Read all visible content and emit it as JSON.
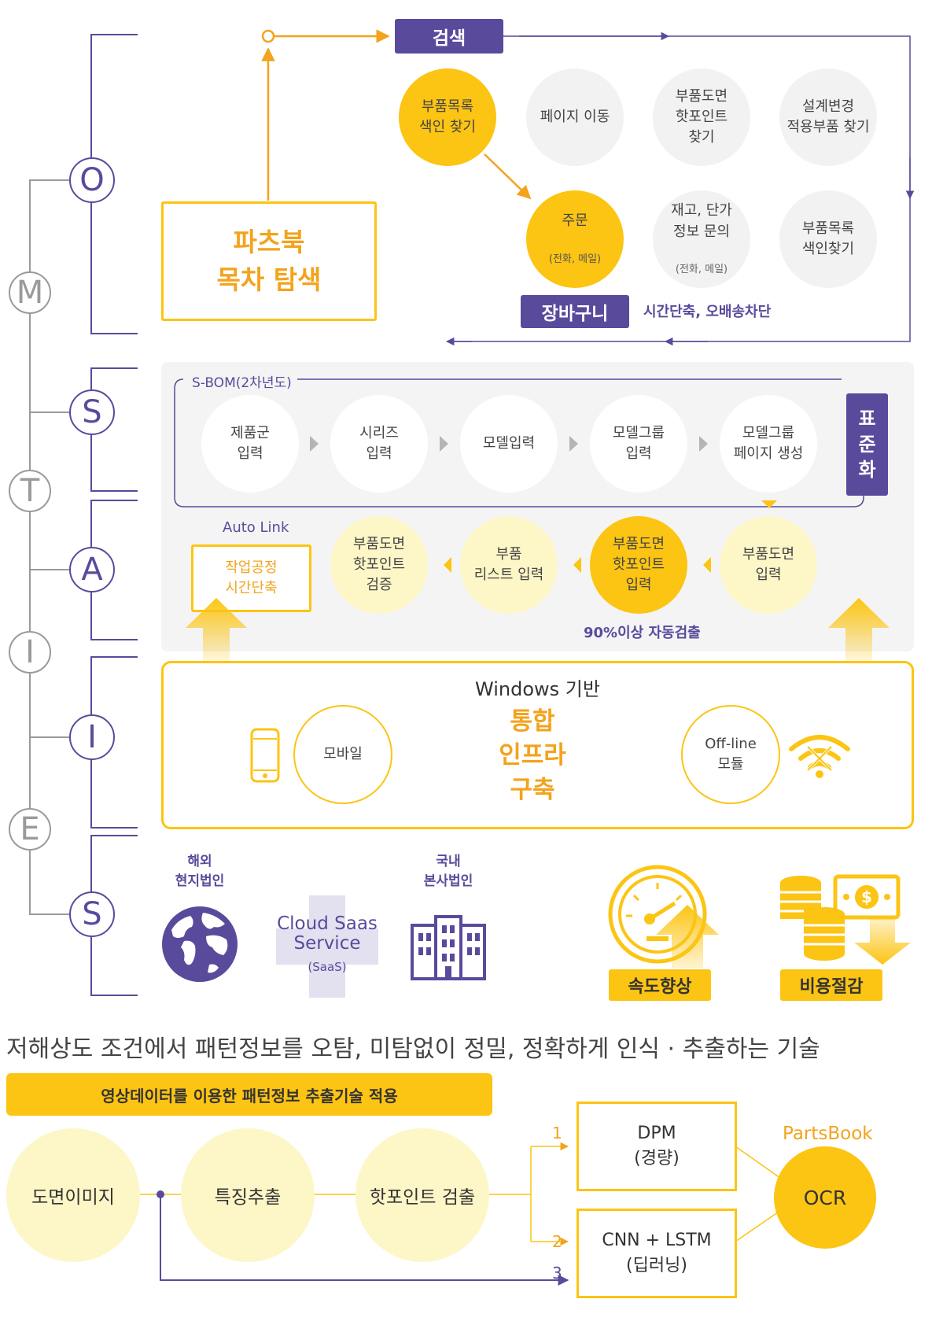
{
  "acronym": {
    "letters": [
      "O",
      "M",
      "S",
      "T",
      "A",
      "I",
      "I",
      "E",
      "S"
    ]
  },
  "section_o": {
    "search_tag": "검색",
    "partsbook_box": "파츠북\n목차 탐색",
    "circles": [
      {
        "text": "부품목록\n색인 찾기"
      },
      {
        "text": "페이지 이동"
      },
      {
        "text": "부품도면\n핫포인트\n찾기"
      },
      {
        "text": "설계변경\n적용부품 찾기"
      },
      {
        "text": "주문",
        "sub": "(전화, 메일)"
      },
      {
        "text": "재고, 단가\n정보 문의",
        "sub": "(전화, 메일)"
      },
      {
        "text": "부품목록\n색인찾기"
      }
    ],
    "cart_tag": "장바구니",
    "cart_note": "시간단축, 오배송차단"
  },
  "section_s": {
    "sbom_label": "S-BOM(2차년도)",
    "steps": [
      "제품군\n입력",
      "시리즈\n입력",
      "모델입력",
      "모델그룹\n입력",
      "모델그룹\n페이지 생성"
    ],
    "standard_tag": "표\n준\n화"
  },
  "section_a": {
    "auto_link": "Auto Link",
    "auto_box": "작업공정\n시간단축",
    "steps": [
      "부품도면\n핫포인트\n검증",
      "부품\n리스트 입력",
      "부품도면\n핫포인트\n입력",
      "부품도면\n입력"
    ],
    "auto_note": "90%이상 자동검출"
  },
  "section_i": {
    "title": "Windows 기반",
    "mobile": "모바일",
    "center": "통합\n인프라\n구축",
    "offline": "Off-line\n모듈"
  },
  "section_s2": {
    "overseas": "해외\n현지법인",
    "domestic": "국내\n본사법인",
    "cloud": "Cloud Saas\nService",
    "cloud_sub": "(SaaS)",
    "speed": "속도향상",
    "cost": "비용절감"
  },
  "bottom": {
    "heading": "저해상도 조건에서 패턴정보를 오탐, 미탐없이 정밀, 정확하게 인식 · 추출하는 기술",
    "banner": "영상데이터를 이용한 패턴정보 추출기술 적용",
    "circles": [
      "도면이미지",
      "특징추출",
      "핫포인트 검출"
    ],
    "box1": "DPM\n(경량)",
    "box2": "CNN + LSTM\n(딥러닝)",
    "num1": "1",
    "num2": "2",
    "num3": "3",
    "partsbook": "PartsBook",
    "ocr": "OCR"
  },
  "colors": {
    "purple": "#5a4a9c",
    "yellow": "#fcc413",
    "orange": "#f3a31c",
    "pale_yellow": "#fdf6c7",
    "grey": "#f2f2f2"
  }
}
